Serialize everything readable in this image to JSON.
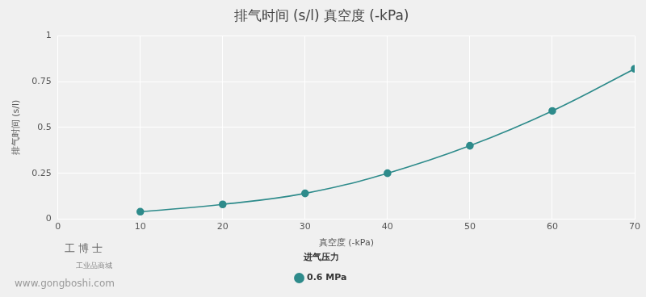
{
  "chart_data": {
    "type": "line",
    "title": "排气时间 (s/l) 真空度 (-kPa)",
    "x_label": "真空度 (-kPa)",
    "y_label": "排气时间 (s/l)",
    "legend_title": "进气压力",
    "x": [
      10,
      20,
      30,
      40,
      50,
      60,
      70
    ],
    "series": [
      {
        "name": "0.6 MPa",
        "color": "#2e8b8b",
        "values": [
          0.04,
          0.08,
          0.14,
          0.25,
          0.4,
          0.59,
          0.82
        ]
      }
    ],
    "xlim": [
      0,
      70
    ],
    "xticks": [
      0,
      10,
      20,
      30,
      40,
      50,
      60,
      70
    ],
    "ylim": [
      0,
      1
    ],
    "yticks": [
      0,
      0.25,
      0.5,
      0.75,
      1
    ],
    "grid": true,
    "legend": "bottom",
    "marker": "circle",
    "annotations": [
      "工博士",
      "工业品商城",
      "www.gongboshi.com"
    ]
  }
}
